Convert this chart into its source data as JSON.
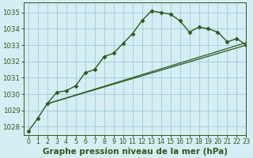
{
  "title": "Graphe pression niveau de la mer (hPa)",
  "bg_color": "#d4eef4",
  "grid_color": "#a8d0da",
  "line_color": "#2d5a1b",
  "xlim": [
    -0.5,
    23
  ],
  "ylim": [
    1027.5,
    1035.6
  ],
  "yticks": [
    1028,
    1029,
    1030,
    1031,
    1032,
    1033,
    1034,
    1035
  ],
  "xticks": [
    0,
    1,
    2,
    3,
    4,
    5,
    6,
    7,
    8,
    9,
    10,
    11,
    12,
    13,
    14,
    15,
    16,
    17,
    18,
    19,
    20,
    21,
    22,
    23
  ],
  "series1": {
    "x": [
      0,
      1,
      2,
      3,
      4,
      5,
      6,
      7,
      8,
      9,
      10,
      11,
      12,
      13,
      14,
      15,
      16,
      17,
      18,
      19,
      20,
      21,
      22,
      23
    ],
    "y": [
      1027.7,
      1028.5,
      1029.4,
      1030.1,
      1030.2,
      1030.5,
      1031.3,
      1031.5,
      1032.3,
      1032.5,
      1033.1,
      1033.7,
      1034.5,
      1035.1,
      1035.0,
      1034.9,
      1034.5,
      1033.8,
      1034.1,
      1034.0,
      1033.8,
      1033.2,
      1033.4,
      1033.0
    ],
    "marker": "D",
    "markersize": 2.5,
    "linewidth": 1.0
  },
  "series2": {
    "x": [
      2,
      23
    ],
    "y": [
      1029.4,
      1033.0
    ],
    "linewidth": 0.9
  },
  "series3": {
    "x": [
      2,
      23
    ],
    "y": [
      1029.4,
      1033.15
    ],
    "linewidth": 0.9
  },
  "title_fontsize": 7.5,
  "tick_fontsize": 5.8,
  "ytick_fontsize": 6.2
}
